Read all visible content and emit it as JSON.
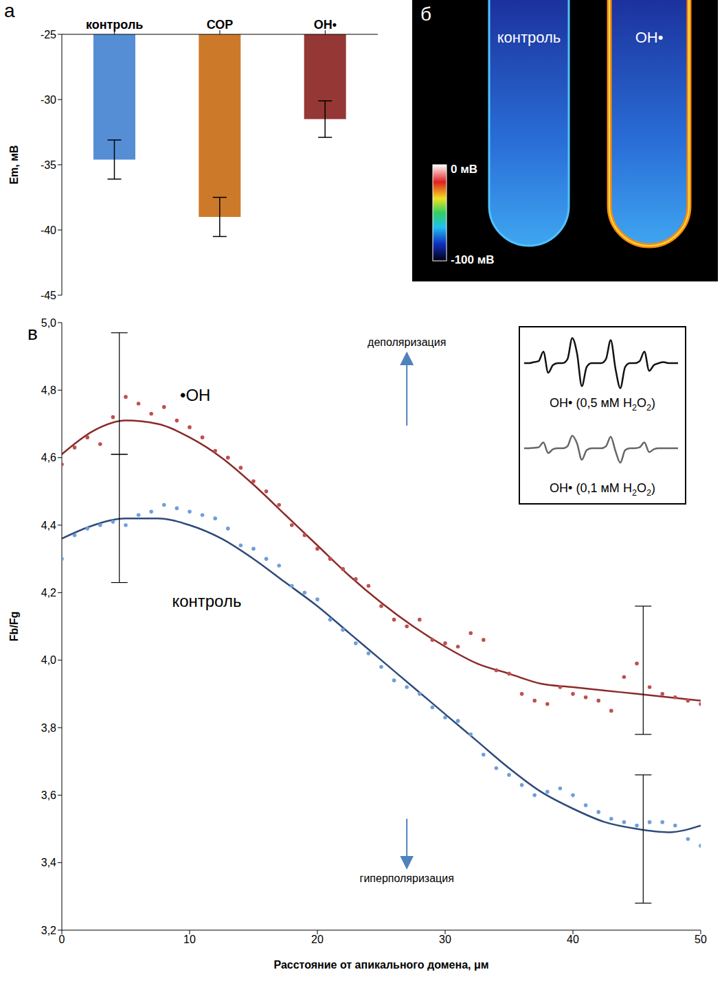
{
  "chart_data": [
    {
      "type": "bar",
      "label": "а",
      "categories": [
        "контроль",
        "СОР",
        "ОН•"
      ],
      "values": [
        -34.6,
        -39.0,
        -31.5
      ],
      "error": [
        1.5,
        1.5,
        1.4
      ],
      "colors": [
        "#558ed5",
        "#cc7a2a",
        "#953735"
      ],
      "ylim": [
        -45,
        -25
      ],
      "yticks": [
        -45,
        -40,
        -35,
        -30,
        -25
      ],
      "y_label": "Em, мВ"
    },
    {
      "type": "scatter",
      "label": "в",
      "marker": "circle",
      "x_label": "Расстояние от апикального домена, μм",
      "y_label": "Fb/Fg",
      "annotations": [
        "деполяризация",
        "гиперполяризация"
      ],
      "xlim": [
        0,
        50
      ],
      "xticks": [
        0,
        10,
        20,
        30,
        40,
        50
      ],
      "ylim": [
        3.2,
        5.0
      ],
      "yticks": [
        {
          "value": 3.2,
          "label": "3,2"
        },
        {
          "value": 3.4,
          "label": "3,4"
        },
        {
          "value": 3.6,
          "label": "3,6"
        },
        {
          "value": 3.8,
          "label": "3,8"
        },
        {
          "value": 4.0,
          "label": "4,0"
        },
        {
          "value": 4.2,
          "label": "4,2"
        },
        {
          "value": 4.4,
          "label": "4,4"
        },
        {
          "value": 4.6,
          "label": "4,6"
        },
        {
          "value": 4.8,
          "label": "4,8"
        },
        {
          "value": 5.0,
          "label": "5,0"
        }
      ],
      "series": [
        {
          "name": "•OH",
          "color": "#c0504d",
          "x": [
            0,
            1,
            2,
            3,
            4,
            5,
            6,
            7,
            8,
            9,
            10,
            11,
            12,
            13,
            14,
            15,
            16,
            17,
            18,
            19,
            20,
            21,
            22,
            23,
            24,
            25,
            26,
            27,
            28,
            29,
            30,
            31,
            32,
            33,
            34,
            35,
            36,
            37,
            38,
            39,
            40,
            41,
            42,
            43,
            44,
            45,
            46,
            47,
            48,
            49,
            50
          ],
          "values": [
            4.58,
            4.63,
            4.66,
            4.64,
            4.72,
            4.78,
            4.76,
            4.73,
            4.75,
            4.71,
            4.69,
            4.66,
            4.62,
            4.6,
            4.57,
            4.53,
            4.5,
            4.46,
            4.4,
            4.37,
            4.33,
            4.3,
            4.27,
            4.24,
            4.22,
            4.16,
            4.12,
            4.1,
            4.12,
            4.06,
            4.05,
            4.04,
            4.08,
            4.06,
            3.97,
            3.96,
            3.9,
            3.88,
            3.87,
            3.92,
            3.9,
            3.89,
            3.88,
            3.85,
            3.95,
            3.99,
            3.92,
            3.9,
            3.89,
            3.88,
            3.87
          ],
          "fit": {
            "color": "#8b2a2a",
            "x": [
              0,
              2.5,
              5,
              7.5,
              10,
              12.5,
              15,
              17.5,
              20,
              22.5,
              25,
              27.5,
              30,
              32.5,
              35,
              37.5,
              40,
              42.5,
              45,
              47.5,
              50
            ],
            "values": [
              4.61,
              4.68,
              4.71,
              4.7,
              4.66,
              4.6,
              4.52,
              4.43,
              4.34,
              4.25,
              4.17,
              4.1,
              4.04,
              3.99,
              3.96,
              3.93,
              3.92,
              3.91,
              3.9,
              3.89,
              3.88
            ]
          },
          "error_bars": {
            "x": [
              4.5,
              45.5
            ],
            "values": [
              4.79,
              3.97
            ],
            "error": [
              0.18,
              0.19
            ]
          }
        },
        {
          "name": "контроль",
          "color": "#6f9fd8",
          "x": [
            0,
            1,
            2,
            3,
            4,
            5,
            6,
            7,
            8,
            9,
            10,
            11,
            12,
            13,
            14,
            15,
            16,
            17,
            18,
            19,
            20,
            21,
            22,
            23,
            24,
            25,
            26,
            27,
            28,
            29,
            30,
            31,
            32,
            33,
            34,
            35,
            36,
            37,
            38,
            39,
            40,
            41,
            42,
            43,
            44,
            45,
            46,
            47,
            48,
            49,
            50
          ],
          "values": [
            4.3,
            4.37,
            4.39,
            4.4,
            4.41,
            4.4,
            4.43,
            4.44,
            4.46,
            4.45,
            4.44,
            4.43,
            4.42,
            4.39,
            4.34,
            4.33,
            4.3,
            4.28,
            4.22,
            4.2,
            4.18,
            4.12,
            4.09,
            4.05,
            4.02,
            3.98,
            3.94,
            3.92,
            3.9,
            3.86,
            3.83,
            3.82,
            3.78,
            3.72,
            3.68,
            3.66,
            3.63,
            3.6,
            3.61,
            3.62,
            3.6,
            3.57,
            3.55,
            3.53,
            3.52,
            3.51,
            3.52,
            3.52,
            3.51,
            3.47,
            3.45
          ],
          "fit": {
            "color": "#2e4a7a",
            "x": [
              0,
              2.5,
              5,
              7.5,
              10,
              12.5,
              15,
              17.5,
              20,
              22.5,
              25,
              27.5,
              30,
              32.5,
              35,
              37.5,
              40,
              42.5,
              45,
              47.5,
              50
            ],
            "values": [
              4.36,
              4.4,
              4.42,
              4.42,
              4.4,
              4.36,
              4.3,
              4.23,
              4.16,
              4.08,
              4.0,
              3.92,
              3.84,
              3.76,
              3.68,
              3.61,
              3.56,
              3.52,
              3.5,
              3.49,
              3.51
            ]
          },
          "error_bars": {
            "x": [
              4.5,
              45.5
            ],
            "values": [
              4.42,
              3.47
            ],
            "error": [
              0.19,
              0.19
            ]
          }
        }
      ]
    },
    {
      "type": "line",
      "tick_labels": false,
      "xlim": [
        0,
        32
      ],
      "ylim": [
        -1.5,
        1.5
      ],
      "x": [
        0,
        1,
        2,
        3,
        4,
        5,
        6,
        7,
        8,
        9,
        10,
        11,
        12,
        13,
        14,
        15,
        16,
        17,
        18,
        19,
        20,
        21,
        22,
        23,
        24,
        25,
        26,
        27,
        28,
        29,
        30,
        31,
        32
      ],
      "series": [
        {
          "name": "OH• (0,5 мМ H2O2)",
          "color": "#111111",
          "values": [
            0,
            0,
            0.05,
            0.1,
            0.6,
            -0.5,
            -0.1,
            0,
            0,
            0.2,
            1.3,
            0.5,
            -1.2,
            -0.2,
            0,
            0,
            0,
            0.2,
            1.2,
            -0.3,
            -1.3,
            -0.2,
            0,
            0,
            0.1,
            0.6,
            -0.4,
            -0.1,
            0,
            0.05,
            0,
            0,
            0
          ]
        },
        {
          "name": "OH• (0,1 мМ H2O2)",
          "color": "#666666",
          "values": [
            0,
            0,
            0.02,
            0.05,
            0.3,
            -0.25,
            -0.05,
            0,
            0,
            0.1,
            0.65,
            0.25,
            -0.6,
            -0.1,
            0,
            0,
            0,
            0.1,
            0.6,
            -0.15,
            -0.75,
            -0.1,
            0,
            0,
            0.05,
            0.3,
            -0.2,
            -0.05,
            0,
            0,
            0,
            0,
            0
          ]
        }
      ]
    }
  ],
  "image_panel": {
    "label": "б",
    "texts": [
      "контроль",
      "OH•"
    ],
    "colorbar_labels": [
      "0 мВ",
      "-100 мВ"
    ]
  }
}
